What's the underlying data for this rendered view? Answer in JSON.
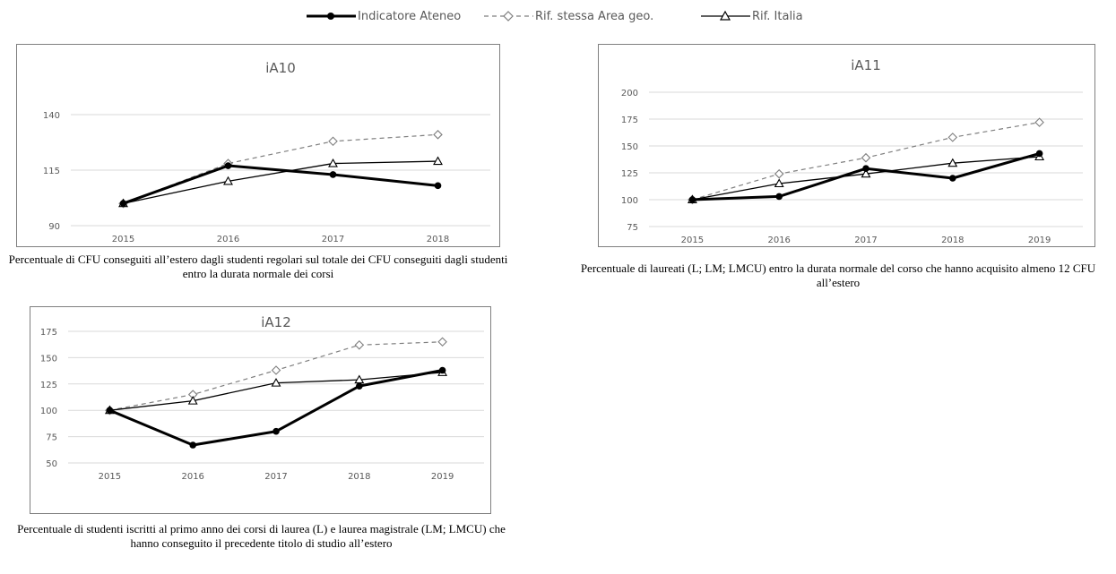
{
  "legend": {
    "ateneo": "Indicatore Ateneo",
    "area": "Rif. stessa Area geo.",
    "italia": "Rif. Italia"
  },
  "colors": {
    "ateneo": "#000000",
    "area": "#7f7f7f",
    "italia": "#000000",
    "grid": "#d9d9d9",
    "text": "#595959"
  },
  "captions": {
    "ia10": "Percentuale di CFU conseguiti all’estero dagli studenti regolari sul totale dei CFU conseguiti dagli studenti entro la durata normale dei corsi",
    "ia11": "Percentuale di laureati (L; LM; LMCU) entro la durata normale del corso che hanno acquisito almeno 12 CFU all’estero",
    "ia12": "Percentuale di studenti iscritti al primo anno dei corsi di laurea (L) e laurea magistrale (LM; LMCU) che hanno conseguito il precedente titolo di studio all’estero"
  },
  "chart_data": [
    {
      "type": "line",
      "title": "iA10",
      "categories": [
        "2015",
        "2016",
        "2017",
        "2018"
      ],
      "ylim": [
        90,
        140
      ],
      "yticks": [
        90,
        115,
        140
      ],
      "grid": true,
      "series": [
        {
          "name": "Indicatore Ateneo",
          "values": [
            100,
            117,
            113,
            108
          ]
        },
        {
          "name": "Rif. stessa Area geo.",
          "values": [
            100,
            118,
            128,
            131
          ]
        },
        {
          "name": "Rif. Italia",
          "values": [
            100,
            110,
            118,
            119
          ]
        }
      ]
    },
    {
      "type": "line",
      "title": "iA11",
      "categories": [
        "2015",
        "2016",
        "2017",
        "2018",
        "2019"
      ],
      "ylim": [
        75,
        200
      ],
      "yticks": [
        75,
        100,
        125,
        150,
        175,
        200
      ],
      "grid": true,
      "series": [
        {
          "name": "Indicatore Ateneo",
          "values": [
            100,
            103,
            129,
            120,
            143
          ]
        },
        {
          "name": "Rif. stessa Area geo.",
          "values": [
            100,
            124,
            139,
            158,
            172
          ]
        },
        {
          "name": "Rif. Italia",
          "values": [
            100,
            115,
            124,
            134,
            140
          ]
        }
      ]
    },
    {
      "type": "line",
      "title": "iA12",
      "categories": [
        "2015",
        "2016",
        "2017",
        "2018",
        "2019"
      ],
      "ylim": [
        50,
        175
      ],
      "yticks": [
        50,
        75,
        100,
        125,
        150,
        175
      ],
      "grid": true,
      "series": [
        {
          "name": "Indicatore Ateneo",
          "values": [
            100,
            67,
            80,
            123,
            138
          ]
        },
        {
          "name": "Rif. stessa Area geo.",
          "values": [
            100,
            115,
            138,
            162,
            165
          ]
        },
        {
          "name": "Rif. Italia",
          "values": [
            100,
            109,
            126,
            129,
            136
          ]
        }
      ]
    }
  ]
}
